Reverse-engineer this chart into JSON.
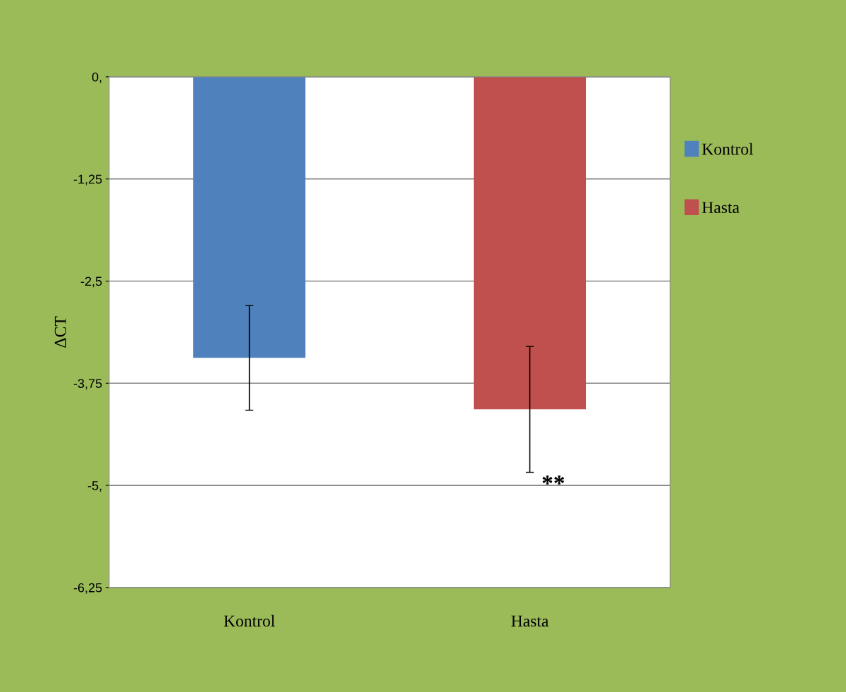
{
  "chart_data": {
    "type": "bar",
    "ylabel": "ΔCT",
    "categories": [
      "Kontrol",
      "Hasta"
    ],
    "series": [
      {
        "name": "Kontrol",
        "color": "#4f81bd",
        "values": [
          -3.44,
          null
        ],
        "errors": [
          0.64,
          null
        ]
      },
      {
        "name": "Hasta",
        "color": "#c0504d",
        "values": [
          null,
          -4.07
        ],
        "errors": [
          null,
          0.77
        ]
      }
    ],
    "ylim": [
      -6.25,
      0
    ],
    "yticks": [
      {
        "value": 0,
        "label": "0,"
      },
      {
        "value": -1.25,
        "label": "-1,25"
      },
      {
        "value": -2.5,
        "label": "-2,5"
      },
      {
        "value": -3.75,
        "label": "-3,75"
      },
      {
        "value": -5,
        "label": "-5,"
      },
      {
        "value": -6.25,
        "label": "-6,25"
      }
    ],
    "grid": "y",
    "legend": "right",
    "annotations": [
      {
        "text": "**",
        "x": "Hasta",
        "y": -4.83
      }
    ]
  }
}
